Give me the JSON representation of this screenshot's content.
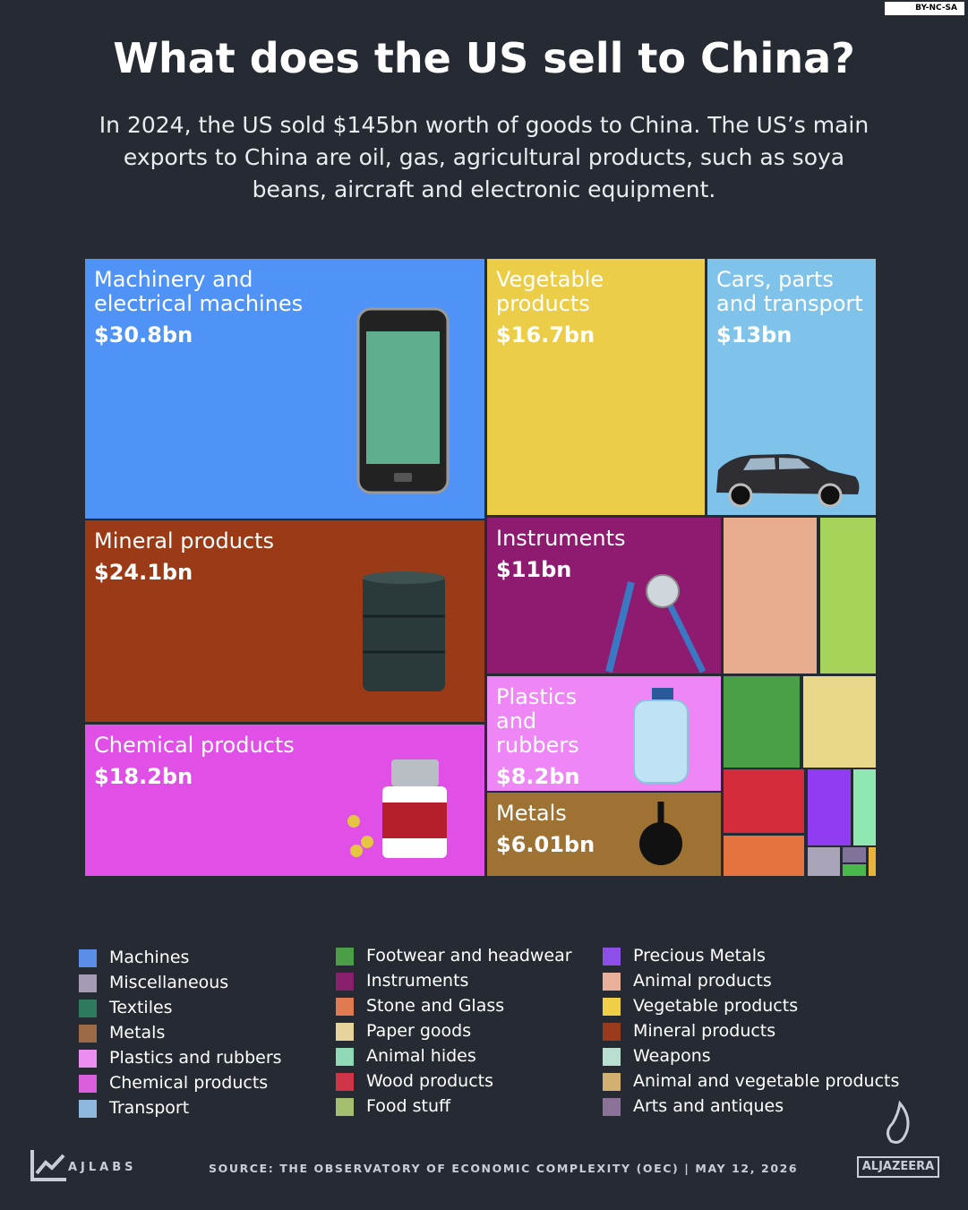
{
  "badge": "BY-NC-SA",
  "chart_data": {
    "type": "treemap",
    "title": "What does the US sell to China?",
    "subtitle": "In 2024, the US sold $145bn worth of goods to China. The US’s main exports to China are oil, gas, agricultural products, such as soya beans, aircraft and electronic equipment.",
    "tiles": [
      {
        "label": "Machinery and electrical machines",
        "value": 30.8,
        "value_label": "$30.8bn",
        "color": "#4f93f7"
      },
      {
        "label": "Vegetable products",
        "value": 16.7,
        "value_label": "$16.7bn",
        "color": "#eccd48"
      },
      {
        "label": "Cars, parts and transport",
        "value": 13,
        "value_label": "$13bn",
        "color": "#7fc3ea"
      },
      {
        "label": "Mineral products",
        "value": 24.1,
        "value_label": "$24.1bn",
        "color": "#9b3a16"
      },
      {
        "label": "Instruments",
        "value": 11,
        "value_label": "$11bn",
        "color": "#8e1b70"
      },
      {
        "label": "Chemical products",
        "value": 18.2,
        "value_label": "$18.2bn",
        "color": "#e04fe6"
      },
      {
        "label": "Plastics and rubbers",
        "value": 8.2,
        "value_label": "$8.2bn",
        "color": "#ef86f5"
      },
      {
        "label": "Metals",
        "value": 6.01,
        "value_label": "$6.01bn",
        "color": "#9d7233"
      },
      {
        "value": 4.3,
        "color": "#e8ad8e"
      },
      {
        "value": 2.6,
        "color": "#a6d35a"
      },
      {
        "value": 2.1,
        "color": "#4aa047"
      },
      {
        "value": 2.0,
        "color": "#e9d88a"
      },
      {
        "value": 1.5,
        "color": "#d12b3c"
      },
      {
        "value": 1.0,
        "color": "#e4733f"
      },
      {
        "value": 1.0,
        "color": "#8f3cf2"
      },
      {
        "value": 0.5,
        "color": "#8fe8b0"
      },
      {
        "value": 0.3,
        "color": "#a9a4b8"
      },
      {
        "value": 0.1,
        "color": "#80739a"
      },
      {
        "value": 0.1,
        "color": "#4ab84a"
      },
      {
        "value": 0.06,
        "color": "#e8b43c"
      }
    ],
    "legend": [
      {
        "name": "Machines",
        "color": "#5b8ee6"
      },
      {
        "name": "Miscellaneous",
        "color": "#a69bb5"
      },
      {
        "name": "Textiles",
        "color": "#2d7a5c"
      },
      {
        "name": "Metals",
        "color": "#9c6a45"
      },
      {
        "name": "Plastics and rubbers",
        "color": "#ec8ef0"
      },
      {
        "name": "Chemical products",
        "color": "#d95fdf"
      },
      {
        "name": "Transport",
        "color": "#8fb8df"
      },
      {
        "name": "Footwear and headwear",
        "color": "#4a9e45"
      },
      {
        "name": "Instruments",
        "color": "#8a1f6e"
      },
      {
        "name": "Stone and Glass",
        "color": "#e07b50"
      },
      {
        "name": "Paper goods",
        "color": "#e6d49a"
      },
      {
        "name": "Animal hides",
        "color": "#8fd9b6"
      },
      {
        "name": "Wood products",
        "color": "#cf3346"
      },
      {
        "name": "Food stuff",
        "color": "#a4bf6e"
      },
      {
        "name": "Precious Metals",
        "color": "#8c4fe8"
      },
      {
        "name": "Animal products",
        "color": "#e8b09a"
      },
      {
        "name": "Vegetable products",
        "color": "#efcf48"
      },
      {
        "name": "Mineral products",
        "color": "#9a3b1d"
      },
      {
        "name": "Weapons",
        "color": "#b9dfd0"
      },
      {
        "name": "Animal and vegetable products",
        "color": "#d2b071"
      },
      {
        "name": "Arts and antiques",
        "color": "#8b7397"
      }
    ]
  },
  "footer": {
    "lab": "AJLABS",
    "source": "SOURCE:  THE OBSERVATORY OF ECONOMIC COMPLEXITY (OEC)  |  MAY 12, 2026",
    "brand": "ALJAZEERA"
  }
}
